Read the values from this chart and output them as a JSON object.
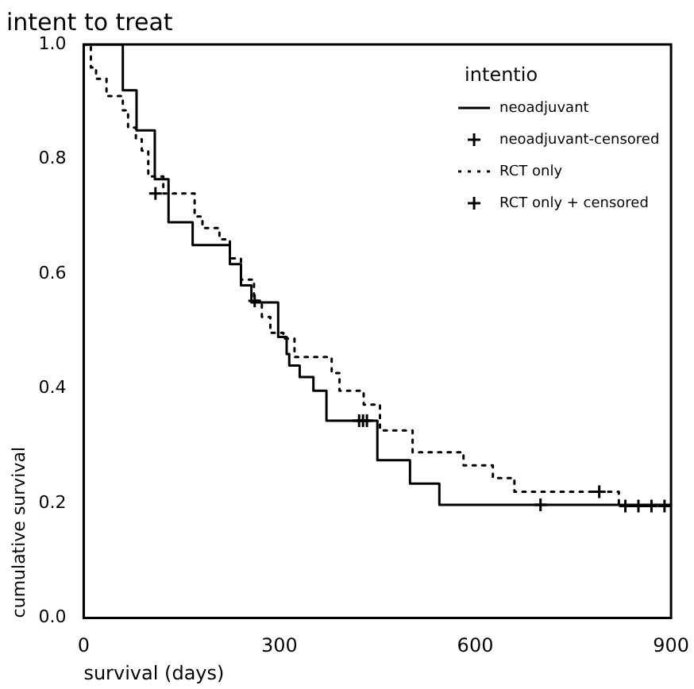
{
  "chart_data": {
    "type": "step",
    "title": "intent to treat",
    "xlabel": "survival (days)",
    "ylabel": "cumulative survival",
    "legend_title": "intentio",
    "xlim": [
      0,
      900
    ],
    "xticks": [
      0,
      300,
      600,
      900
    ],
    "ylim": [
      0,
      1
    ],
    "yticks": [
      {
        "value": 0,
        "label": "0.0"
      },
      0.2,
      0.4,
      0.6,
      0.8,
      {
        "value": 1,
        "label": "1.0"
      }
    ],
    "grid": false,
    "legend": "top right",
    "series": [
      {
        "name": "neoadjuvant",
        "type": "step",
        "color": "#000000",
        "line_style": "solid",
        "marker": "none",
        "x": [
          0,
          42,
          60,
          81,
          109,
          130,
          167,
          204,
          224,
          241,
          257,
          298,
          311,
          315,
          331,
          352,
          372,
          450,
          500,
          545,
          900
        ],
        "values": [
          1.0,
          1.0,
          0.92,
          0.85,
          0.765,
          0.69,
          0.65,
          0.65,
          0.617,
          0.58,
          0.55,
          0.49,
          0.46,
          0.44,
          0.42,
          0.396,
          0.344,
          0.275,
          0.234,
          0.197,
          0.197
        ]
      },
      {
        "name": "neoadjuvant-censored",
        "type": "scatter",
        "color": "#000000",
        "marker": "cross",
        "x": [
          422,
          428,
          434,
          700
        ],
        "values": [
          0.344,
          0.344,
          0.344,
          0.197
        ]
      },
      {
        "name": "RCT only",
        "type": "step",
        "color": "#000000",
        "line_style": "dotted",
        "marker": "none",
        "x": [
          0,
          11,
          19,
          35,
          60,
          68,
          80,
          89,
          99,
          122,
          170,
          182,
          208,
          224,
          241,
          261,
          273,
          286,
          306,
          323,
          380,
          392,
          429,
          454,
          504,
          582,
          627,
          660,
          820,
          900
        ],
        "values": [
          1.0,
          0.96,
          0.94,
          0.91,
          0.885,
          0.855,
          0.835,
          0.815,
          0.77,
          0.74,
          0.7,
          0.68,
          0.66,
          0.627,
          0.59,
          0.553,
          0.525,
          0.497,
          0.487,
          0.455,
          0.427,
          0.396,
          0.372,
          0.327,
          0.289,
          0.266,
          0.244,
          0.22,
          0.195,
          0.195
        ]
      },
      {
        "name": "RCT only + censored",
        "type": "scatter",
        "color": "#000000",
        "marker": "cross",
        "x": [
          110,
          262,
          790,
          830,
          850,
          870,
          890
        ],
        "values": [
          0.74,
          0.553,
          0.22,
          0.195,
          0.195,
          0.195,
          0.195
        ]
      }
    ]
  }
}
